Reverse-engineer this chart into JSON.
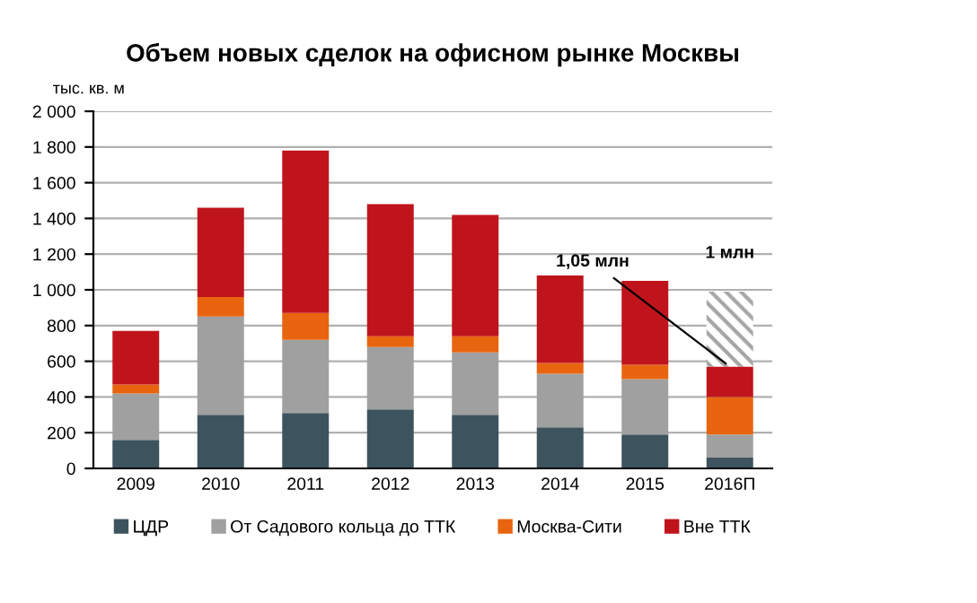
{
  "chart_data": {
    "type": "bar",
    "stacked": true,
    "title": "Объем новых сделок на офисном рынке Москвы",
    "ylabel": "тыс. кв. м",
    "categories": [
      "2009",
      "2010",
      "2011",
      "2012",
      "2013",
      "2014",
      "2015",
      "2016П"
    ],
    "series": [
      {
        "name": "ЦДР",
        "color": "#3d545e",
        "values": [
          160,
          300,
          310,
          330,
          300,
          230,
          190,
          60
        ]
      },
      {
        "name": "От Садового кольца до ТТК",
        "color": "#a0a0a0",
        "values": [
          260,
          550,
          410,
          350,
          350,
          300,
          310,
          130
        ]
      },
      {
        "name": "Москва-Сити",
        "color": "#e8640f",
        "values": [
          50,
          110,
          150,
          60,
          90,
          60,
          80,
          210
        ]
      },
      {
        "name": "Вне ТТК",
        "color": "#c0141c",
        "values": [
          300,
          500,
          910,
          740,
          680,
          490,
          470,
          170
        ]
      },
      {
        "color": "#a6a6a6",
        "values": [
          null,
          null,
          null,
          null,
          null,
          null,
          null,
          420
        ]
      }
    ],
    "annotations": [
      {
        "text": "1,05 млн",
        "x": "2016П",
        "y": 570
      },
      {
        "text": "1 млн",
        "x": "2016П",
        "y": 990
      }
    ],
    "ylim": [
      0,
      2000
    ],
    "yticks": [
      0,
      200,
      400,
      600,
      800,
      {
        "value": 1000,
        "label": "1 000"
      },
      {
        "value": 1200,
        "label": "1 200"
      },
      {
        "value": 1400,
        "label": "1 400"
      },
      {
        "value": 1600,
        "label": "1 600"
      },
      {
        "value": 1800,
        "label": "1 800"
      },
      {
        "value": 2000,
        "label": "2 000"
      }
    ],
    "grid": "y",
    "legend": "bottom"
  }
}
